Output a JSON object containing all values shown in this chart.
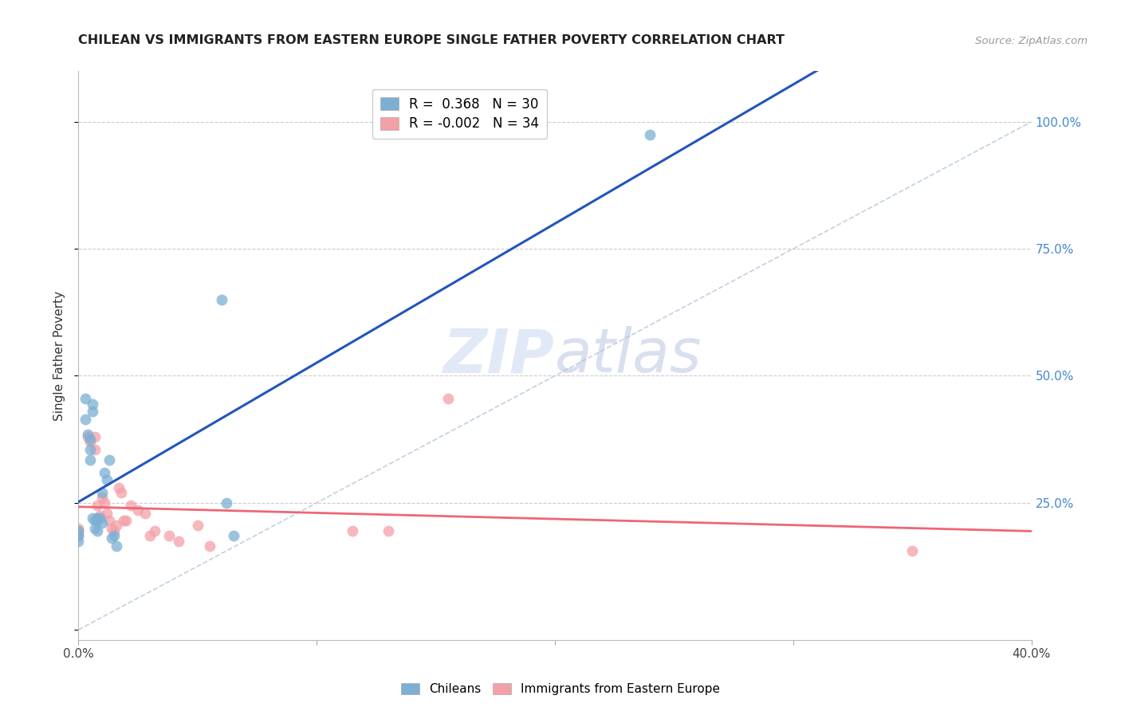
{
  "title": "CHILEAN VS IMMIGRANTS FROM EASTERN EUROPE SINGLE FATHER POVERTY CORRELATION CHART",
  "source": "Source: ZipAtlas.com",
  "ylabel": "Single Father Poverty",
  "xlim": [
    0.0,
    0.4
  ],
  "ylim": [
    -0.02,
    1.1
  ],
  "plot_ylim": [
    0.0,
    1.05
  ],
  "chilean_R": 0.368,
  "chilean_N": 30,
  "eastern_europe_R": -0.002,
  "eastern_europe_N": 34,
  "chilean_color": "#7BAFD4",
  "eastern_europe_color": "#F4A0A8",
  "regression_line_blue": "#2255BB",
  "regression_line_pink": "#EE6677",
  "diagonal_color": "#BBCCDD",
  "watermark_zip": "ZIP",
  "watermark_atlas": "atlas",
  "chilean_x": [
    0.0,
    0.0,
    0.0,
    0.003,
    0.003,
    0.004,
    0.005,
    0.005,
    0.005,
    0.006,
    0.006,
    0.006,
    0.007,
    0.007,
    0.008,
    0.008,
    0.008,
    0.009,
    0.01,
    0.01,
    0.011,
    0.012,
    0.013,
    0.014,
    0.015,
    0.016,
    0.06,
    0.062,
    0.065,
    0.24
  ],
  "chilean_y": [
    0.195,
    0.185,
    0.175,
    0.455,
    0.415,
    0.385,
    0.375,
    0.355,
    0.335,
    0.445,
    0.43,
    0.22,
    0.215,
    0.2,
    0.22,
    0.215,
    0.195,
    0.22,
    0.27,
    0.21,
    0.31,
    0.295,
    0.335,
    0.18,
    0.185,
    0.165,
    0.65,
    0.25,
    0.185,
    0.975
  ],
  "eastern_x": [
    0.0,
    0.0,
    0.0,
    0.0,
    0.004,
    0.005,
    0.007,
    0.007,
    0.008,
    0.009,
    0.01,
    0.011,
    0.012,
    0.013,
    0.014,
    0.015,
    0.016,
    0.017,
    0.018,
    0.019,
    0.02,
    0.022,
    0.025,
    0.028,
    0.03,
    0.032,
    0.038,
    0.042,
    0.05,
    0.055,
    0.115,
    0.13,
    0.155,
    0.35
  ],
  "eastern_y": [
    0.2,
    0.195,
    0.19,
    0.185,
    0.38,
    0.37,
    0.38,
    0.355,
    0.245,
    0.225,
    0.26,
    0.25,
    0.23,
    0.215,
    0.2,
    0.195,
    0.205,
    0.28,
    0.27,
    0.215,
    0.215,
    0.245,
    0.235,
    0.23,
    0.185,
    0.195,
    0.185,
    0.175,
    0.205,
    0.165,
    0.195,
    0.195,
    0.455,
    0.155
  ]
}
